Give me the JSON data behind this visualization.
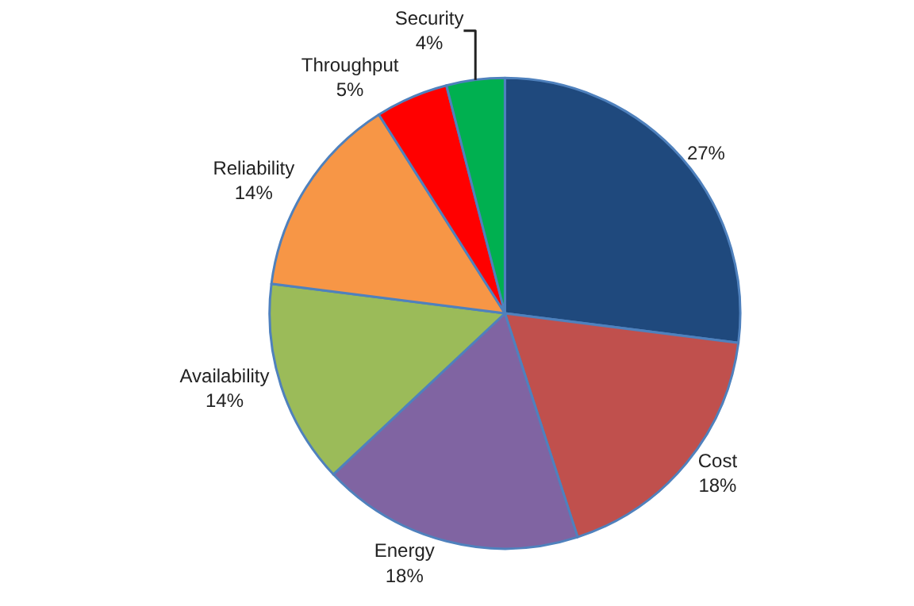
{
  "chart_data": {
    "type": "pie",
    "categories": [
      null,
      "Cost",
      "Energy",
      "Availability",
      "Reliability",
      "Throughput",
      "Security"
    ],
    "values": [
      27,
      18,
      18,
      14,
      14,
      5,
      4
    ],
    "colors": [
      "#1f497d",
      "#c0504d",
      "#8064a2",
      "#9bbb59",
      "#f79646",
      "#ff0000",
      "#00b050"
    ],
    "value_labels": [
      "27%",
      "18%",
      "18%",
      "14%",
      "14%",
      "5%",
      "4%"
    ],
    "legend": false
  }
}
